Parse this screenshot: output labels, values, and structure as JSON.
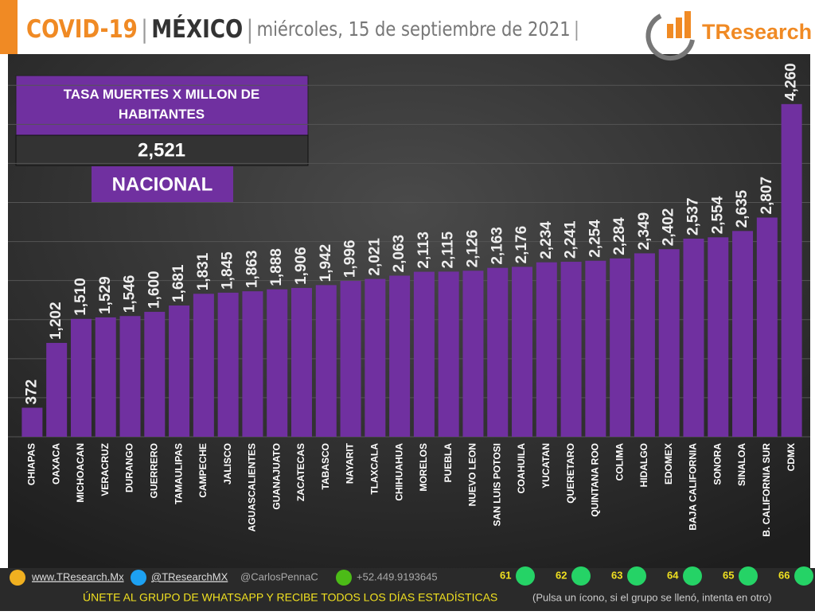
{
  "header": {
    "title_parts": [
      "COVID-19",
      "|",
      "MÉXICO",
      "|",
      "miércoles, 15 de septiembre de 2021",
      "|"
    ],
    "logo": "TResearch"
  },
  "summary": {
    "label": "TASA MUERTES X MILLON DE HABITANTES",
    "value": "2,521",
    "scope": "NACIONAL"
  },
  "chart_data": {
    "type": "bar",
    "color": "#7030a0",
    "grid": true,
    "categories": [
      "CHIAPAS",
      "OAXACA",
      "MICHOACAN",
      "VERACRUZ",
      "DURANGO",
      "GUERRERO",
      "TAMAULIPAS",
      "CAMPECHE",
      "JALISCO",
      "AGUASCALIENTES",
      "GUANAJUATO",
      "ZACATECAS",
      "TABASCO",
      "NAYARIT",
      "TLAXCALA",
      "CHIHUAHUA",
      "MORELOS",
      "PUEBLA",
      "NUEVO LEON",
      "SAN LUIS POTOSI",
      "COAHUILA",
      "YUCATAN",
      "QUERETARO",
      "QUINTANA ROO",
      "COLIMA",
      "HIDALGO",
      "EDOMEX",
      "BAJA CALIFORNIA",
      "SONORA",
      "SINALOA",
      "B. CALIFORNIA SUR",
      "CDMX"
    ],
    "values": [
      372,
      1202,
      1510,
      1529,
      1546,
      1600,
      1681,
      1831,
      1845,
      1863,
      1888,
      1906,
      1942,
      1996,
      2021,
      2063,
      2113,
      2115,
      2126,
      2163,
      2176,
      2234,
      2241,
      2254,
      2284,
      2349,
      2402,
      2537,
      2554,
      2635,
      2807,
      4260
    ],
    "value_labels": [
      "372",
      "1,202",
      "1,510",
      "1,529",
      "1,546",
      "1,600",
      "1,681",
      "1,831",
      "1,845",
      "1,863",
      "1,888",
      "1,906",
      "1,942",
      "1,996",
      "2,021",
      "2,063",
      "2,113",
      "2,115",
      "2,126",
      "2,163",
      "2,176",
      "2,234",
      "2,241",
      "2,254",
      "2,284",
      "2,349",
      "2,402",
      "2,537",
      "2,554",
      "2,635",
      "2,807",
      "4,260"
    ],
    "ylim": [
      0,
      4900
    ],
    "yticks": [
      0,
      500,
      1000,
      1500,
      2000,
      2500,
      3000,
      3500,
      4000,
      4500
    ]
  },
  "footer": {
    "web": "www.TResearch.Mx",
    "twitter": "@TResearchMX",
    "twitter2": "@CarlosPennaC",
    "phone": "+52.449.9193645",
    "groups": [
      "61",
      "62",
      "63",
      "64",
      "65",
      "66"
    ],
    "cta": "ÚNETE AL GRUPO DE WHATSAPP Y RECIBE TODOS LOS DÍAS ESTADÍSTICAS",
    "note": "(Pulsa un ícono, si el grupo se llenó, intenta en otro)"
  }
}
